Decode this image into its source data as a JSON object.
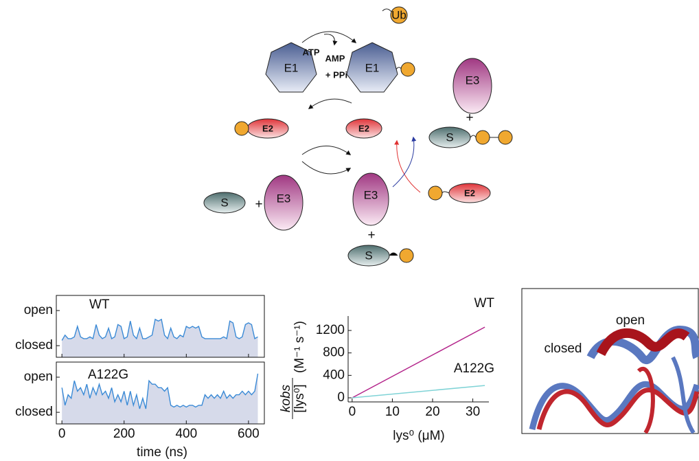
{
  "diagram": {
    "ub": "Ub",
    "e1": "E1",
    "e2": "E2",
    "e3": "E3",
    "s": "S",
    "atp": "ATP",
    "amp": "AMP",
    "ppi": "+ PPi",
    "plus": "+"
  },
  "structure": {
    "open": "open",
    "closed": "closed"
  },
  "chart_data": [
    {
      "type": "line",
      "xlim": [
        -18,
        651
      ],
      "ylim": [
        -0.33,
        1.43
      ],
      "xticks": [
        0,
        200,
        400,
        600
      ],
      "yticks": [
        {
          "value": 0,
          "label": "closed"
        },
        {
          "value": 1,
          "label": "open"
        }
      ],
      "area_color": "#d6daea",
      "x": [
        0,
        10,
        20,
        30,
        40,
        50,
        60,
        70,
        80,
        90,
        100,
        110,
        120,
        130,
        140,
        150,
        160,
        170,
        180,
        190,
        200,
        210,
        220,
        230,
        240,
        250,
        260,
        270,
        280,
        290,
        300,
        310,
        320,
        330,
        340,
        350,
        360,
        370,
        380,
        390,
        400,
        410,
        420,
        430,
        440,
        450,
        460,
        470,
        480,
        490,
        500,
        510,
        520,
        530,
        540,
        550,
        560,
        570,
        580,
        590,
        600,
        610,
        620,
        630
      ],
      "series": [
        {
          "name": "WT",
          "color": "#3a8ad6",
          "label_color": "#a3237f",
          "values": [
            0.15,
            0.3,
            0.2,
            0.2,
            0.25,
            0.55,
            0.25,
            0.2,
            0.2,
            0.25,
            0.2,
            0.6,
            0.3,
            0.2,
            0.25,
            0.5,
            0.2,
            0.25,
            0.6,
            0.55,
            0.2,
            0.25,
            0.7,
            0.3,
            0.2,
            0.5,
            0.2,
            0.2,
            0.25,
            0.3,
            0.75,
            0.7,
            0.75,
            0.3,
            0.2,
            0.5,
            0.25,
            0.2,
            0.3,
            0.25,
            0.55,
            0.5,
            0.55,
            0.5,
            0.55,
            0.25,
            0.2,
            0.2,
            0.2,
            0.2,
            0.2,
            0.2,
            0.25,
            0.2,
            0.7,
            0.65,
            0.25,
            0.2,
            0.25,
            0.6,
            0.65,
            0.6,
            0.2,
            0.25
          ]
        }
      ]
    },
    {
      "type": "line",
      "xlim": [
        -18,
        651
      ],
      "ylim": [
        -0.33,
        1.43
      ],
      "xticks": [
        0,
        200,
        400,
        600
      ],
      "yticks": [
        {
          "value": 0,
          "label": "closed"
        },
        {
          "value": 1,
          "label": "open"
        }
      ],
      "area_color": "#d6daea",
      "xlabel": "time (ns)",
      "x": [
        0,
        10,
        20,
        30,
        40,
        50,
        60,
        70,
        80,
        90,
        100,
        110,
        120,
        130,
        140,
        150,
        160,
        170,
        180,
        190,
        200,
        210,
        220,
        230,
        240,
        250,
        260,
        270,
        280,
        290,
        300,
        310,
        320,
        330,
        340,
        350,
        360,
        370,
        380,
        390,
        400,
        410,
        420,
        430,
        440,
        450,
        460,
        470,
        480,
        490,
        500,
        510,
        520,
        530,
        540,
        550,
        560,
        570,
        580,
        590,
        600,
        610,
        620,
        630
      ],
      "series": [
        {
          "name": "A122G",
          "color": "#3a8ad6",
          "label_color": "#7fd3d6",
          "values": [
            0.7,
            0.2,
            0.5,
            0.4,
            0.9,
            0.6,
            0.7,
            0.5,
            0.8,
            0.4,
            0.7,
            0.5,
            0.8,
            0.5,
            0.6,
            0.4,
            0.7,
            0.3,
            0.5,
            0.3,
            0.6,
            0.2,
            0.6,
            0.2,
            0.5,
            0.1,
            0.4,
            0.1,
            0.9,
            0.8,
            0.8,
            0.7,
            0.7,
            0.6,
            0.7,
            0.2,
            0.15,
            0.2,
            0.15,
            0.2,
            0.15,
            0.2,
            0.2,
            0.15,
            0.2,
            0.2,
            0.5,
            0.4,
            0.5,
            0.4,
            0.5,
            0.4,
            0.6,
            0.4,
            0.5,
            0.4,
            0.5,
            0.5,
            0.6,
            0.5,
            0.6,
            0.5,
            0.6,
            1.1
          ]
        }
      ]
    },
    {
      "type": "line",
      "xlim": [
        -1,
        34
      ],
      "ylim": [
        -73,
        1457
      ],
      "xticks": [
        0,
        10,
        20,
        30
      ],
      "yticks": [
        0,
        400,
        800,
        1200
      ],
      "xlabel": "lys⁰ (μM)",
      "ylabel": {
        "numerator": "kobs",
        "denominator": "[lys⁰]",
        "units": "(M⁻¹ s⁻¹)"
      },
      "x": [
        0,
        33
      ],
      "series": [
        {
          "name": "WT",
          "color": "#b3238a",
          "label_color": "#a3237f",
          "values": [
            0,
            1260
          ]
        },
        {
          "name": "A122G",
          "color": "#7fd3d6",
          "label_color": "#7fd3d6",
          "values": [
            0,
            220
          ]
        }
      ]
    }
  ]
}
